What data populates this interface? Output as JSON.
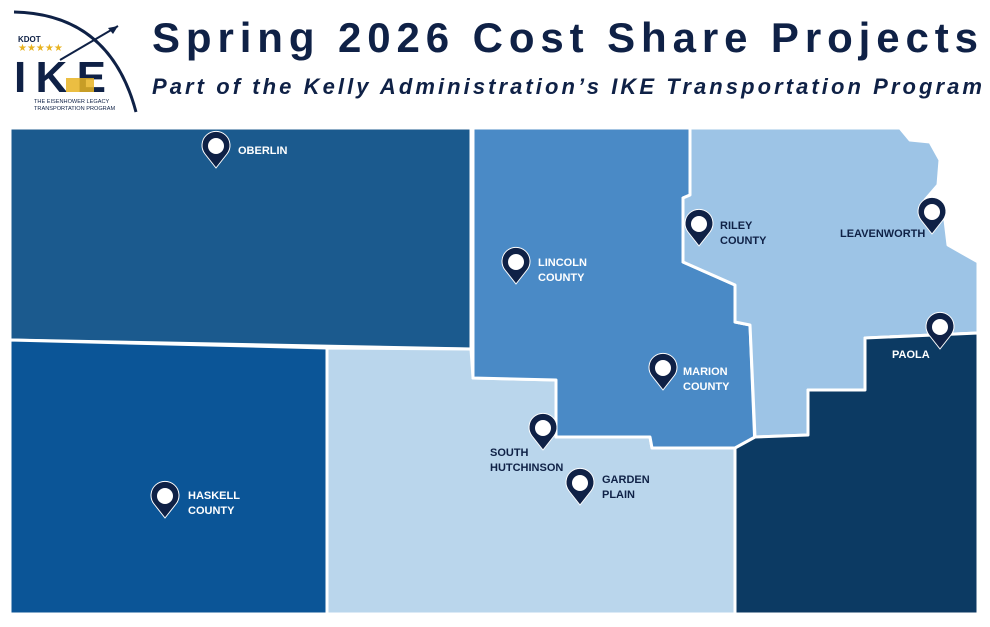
{
  "header": {
    "logo": {
      "agency": "KDOT",
      "name": "IKE",
      "tagline": [
        "THE EISENHOWER LEGACY",
        "TRANSPORTATION PROGRAM"
      ]
    },
    "title": "Spring 2026 Cost Share Projects",
    "subtitle": "Part of the Kelly Administration’s IKE Transportation Program"
  },
  "locations": [
    {
      "lines": [
        "OBERLIN"
      ]
    },
    {
      "lines": [
        "LINCOLN",
        "COUNTY"
      ]
    },
    {
      "lines": [
        "RILEY",
        "COUNTY"
      ]
    },
    {
      "lines": [
        "LEAVENWORTH"
      ]
    },
    {
      "lines": [
        "PAOLA"
      ]
    },
    {
      "lines": [
        "MARION",
        "COUNTY"
      ]
    },
    {
      "lines": [
        "SOUTH",
        "HUTCHINSON"
      ]
    },
    {
      "lines": [
        "GARDEN",
        "PLAIN"
      ]
    },
    {
      "lines": [
        "HASKELL",
        "COUNTY"
      ]
    }
  ]
}
